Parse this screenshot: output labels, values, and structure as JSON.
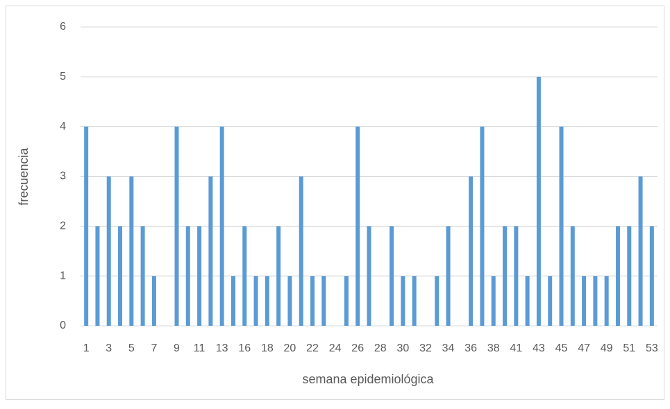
{
  "chart_data": {
    "type": "bar",
    "x_label": "semana epidemiológica",
    "y_label": "frecuencia",
    "categories": [
      "1",
      null,
      "3",
      null,
      "5",
      null,
      "7",
      null,
      "9",
      null,
      "11",
      null,
      "13",
      null,
      "16",
      null,
      "18",
      null,
      "20",
      null,
      "22",
      null,
      "24",
      null,
      "26",
      null,
      "28",
      null,
      "30",
      null,
      "32",
      null,
      "34",
      null,
      "36",
      null,
      "38",
      null,
      "41",
      null,
      "43",
      null,
      "45",
      null,
      "47",
      null,
      "49",
      null,
      "51",
      null,
      "53"
    ],
    "values": [
      4,
      2,
      3,
      2,
      3,
      2,
      1,
      0,
      4,
      2,
      2,
      3,
      4,
      1,
      2,
      1,
      1,
      2,
      1,
      3,
      1,
      1,
      0,
      1,
      4,
      2,
      0,
      2,
      1,
      1,
      0,
      1,
      2,
      0,
      3,
      4,
      1,
      2,
      2,
      1,
      5,
      1,
      4,
      2,
      1,
      1,
      1,
      2,
      2,
      3,
      2
    ],
    "color": "#5b9bd5",
    "ylim": [
      0,
      6
    ],
    "yticks": [
      0,
      1,
      2,
      3,
      4,
      5,
      6
    ],
    "grid": true
  }
}
